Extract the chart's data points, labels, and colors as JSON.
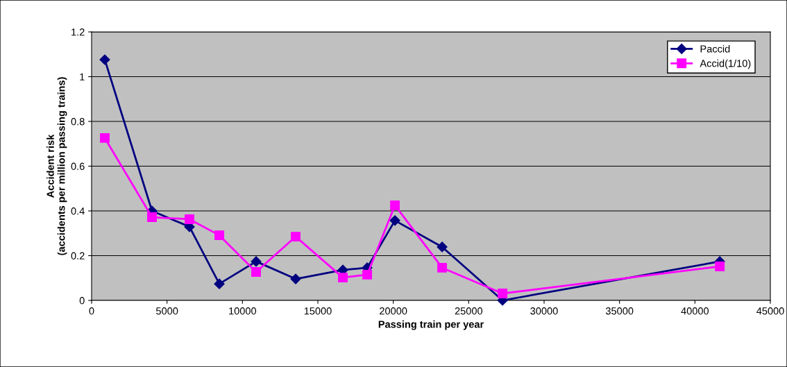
{
  "chart_data": {
    "type": "line",
    "xlabel": "Passing train per year",
    "ylabel": "Accident risk\n(accidents per million passing trains)",
    "x": [
      874,
      4004,
      6489,
      8468,
      10907,
      13530,
      16659,
      18270,
      20111,
      23240,
      27244,
      41648
    ],
    "series": [
      {
        "name": "Paccid",
        "color": "#000080",
        "marker": "diamond",
        "values": [
          1.076,
          0.4,
          0.329,
          0.074,
          0.174,
          0.096,
          0.136,
          0.146,
          0.357,
          0.239,
          0.0,
          0.174
        ]
      },
      {
        "name": "Accid(1/10)",
        "color": "#ff00ff",
        "marker": "square",
        "values": [
          0.726,
          0.372,
          0.363,
          0.291,
          0.127,
          0.285,
          0.102,
          0.115,
          0.425,
          0.146,
          0.031,
          0.152
        ]
      }
    ],
    "xlim": [
      0,
      45000
    ],
    "xticks": [
      0,
      5000,
      10000,
      15000,
      20000,
      25000,
      30000,
      35000,
      40000,
      45000
    ],
    "ylim": [
      0,
      1.2
    ],
    "yticks": [
      0,
      0.2,
      0.4,
      0.6,
      0.8,
      1,
      1.2
    ],
    "grid": "y",
    "legend": "top right",
    "line_style": "solid"
  }
}
